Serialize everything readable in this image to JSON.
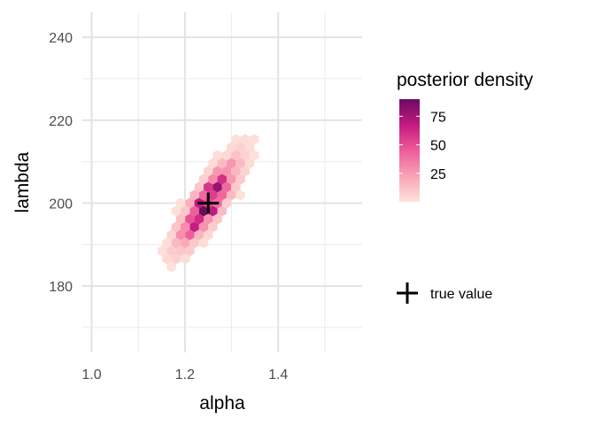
{
  "chart_data": {
    "type": "hexbin",
    "xlabel": "alpha",
    "ylabel": "lambda",
    "xlim": [
      0.98,
      1.58
    ],
    "ylim": [
      164,
      246
    ],
    "x_ticks": [
      1.0,
      1.2,
      1.4
    ],
    "x_tick_labels": [
      "1.0",
      "1.2",
      "1.4"
    ],
    "y_ticks": [
      180,
      200,
      220,
      240
    ],
    "y_tick_labels": [
      "180",
      "200",
      "220",
      "240"
    ],
    "x_minor_ticks": [
      1.1,
      1.3,
      1.5
    ],
    "y_minor_ticks": [
      170,
      190,
      210,
      230
    ],
    "grid": true,
    "density_legend": {
      "title": "posterior density",
      "ticks": [
        25,
        50,
        75
      ],
      "tick_labels": [
        "25",
        "50",
        "75"
      ],
      "range": [
        0,
        90
      ],
      "colors": [
        "#fee4dc",
        "#f9a3b4",
        "#ee5c9a",
        "#c41a80",
        "#6e0a60"
      ]
    },
    "posterior": {
      "description_fields_only": false,
      "center": {
        "alpha": 1.25,
        "lambda": 200
      },
      "slope_lambda_per_alpha": 131,
      "alpha_sd": 0.036,
      "lambda_residual_sd": 3.2,
      "alpha_range": [
        1.0,
        1.56
      ],
      "peak_density": 88
    },
    "true_value": {
      "alpha": 1.25,
      "lambda": 200,
      "label": "true value",
      "marker": "+",
      "color": "#000000"
    }
  }
}
